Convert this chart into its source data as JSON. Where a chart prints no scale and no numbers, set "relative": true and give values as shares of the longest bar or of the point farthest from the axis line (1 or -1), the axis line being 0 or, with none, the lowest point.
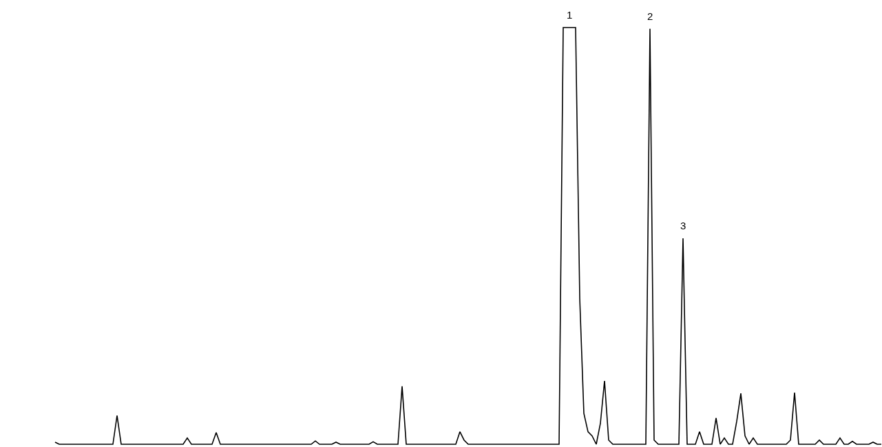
{
  "chart_data": {
    "type": "line",
    "relative": true,
    "color": "#000000",
    "marker": "none",
    "legend": false,
    "tick_labels": false,
    "categories": [
      null,
      null,
      null,
      null,
      null,
      null,
      null,
      null,
      null,
      null,
      null,
      null,
      null,
      null,
      null,
      null,
      null,
      null,
      null,
      null,
      null,
      null,
      null,
      null,
      null,
      null,
      null,
      null,
      null,
      null,
      null,
      null,
      null,
      null,
      null,
      null,
      null,
      null,
      null,
      null,
      null,
      null,
      null,
      null,
      null,
      null,
      null,
      null,
      null,
      null,
      null,
      null,
      null,
      null,
      null,
      null,
      null,
      null,
      null,
      null,
      null,
      null,
      null,
      null,
      null,
      null,
      null,
      null,
      null,
      null,
      null,
      null,
      null,
      null,
      null,
      null,
      null,
      null,
      null,
      null,
      null,
      null,
      null,
      null,
      null,
      null,
      null,
      null,
      null,
      null,
      null,
      null,
      null,
      null,
      null,
      null,
      null,
      null,
      null,
      null,
      null,
      null,
      null,
      null,
      null,
      null,
      null,
      null,
      null,
      null,
      null,
      null,
      null,
      null,
      null,
      null,
      null,
      null,
      null,
      null,
      null,
      null,
      null,
      null,
      null,
      null,
      null,
      null,
      null,
      null,
      null,
      null,
      null,
      null,
      null,
      null,
      null,
      null,
      null,
      null,
      null,
      null,
      null,
      null,
      null,
      null,
      null,
      null,
      null,
      null,
      null,
      null,
      null,
      null,
      null,
      null,
      null,
      null,
      null,
      null,
      null,
      null,
      null,
      null,
      null,
      null,
      null,
      null,
      null,
      null,
      null,
      null,
      null,
      null,
      null,
      null,
      null,
      null,
      null,
      null,
      null,
      null,
      null,
      null,
      null,
      null,
      null,
      null,
      null,
      null,
      null,
      null,
      null,
      null,
      null,
      null,
      null,
      null,
      null,
      null,
      null
    ],
    "values": [
      0.005,
      0,
      0,
      0,
      0,
      0,
      0,
      0,
      0,
      0,
      0,
      0,
      0,
      0,
      0,
      0.069,
      0,
      0,
      0,
      0,
      0,
      0,
      0,
      0,
      0,
      0,
      0,
      0,
      0,
      0,
      0,
      0,
      0.015,
      0,
      0,
      0,
      0,
      0,
      0,
      0.028,
      0,
      0,
      0,
      0,
      0,
      0,
      0,
      0,
      0,
      0,
      0,
      0,
      0,
      0,
      0,
      0,
      0,
      0,
      0,
      0,
      0,
      0,
      0,
      0.008,
      0,
      0,
      0,
      0,
      0.005,
      0,
      0,
      0,
      0,
      0,
      0,
      0,
      0,
      0.006,
      0,
      0,
      0,
      0,
      0,
      0,
      0.139,
      0,
      0,
      0,
      0,
      0,
      0,
      0,
      0,
      0,
      0,
      0,
      0,
      0,
      0.03,
      0.01,
      0,
      0,
      0,
      0,
      0,
      0,
      0,
      0,
      0,
      0,
      0,
      0,
      0,
      0,
      0,
      0,
      0,
      0,
      0,
      0,
      0,
      0,
      0,
      1,
      1,
      1,
      1,
      0.35,
      0.074,
      0.03,
      0.02,
      0,
      0.05,
      0.152,
      0.01,
      0,
      0,
      0,
      0,
      0,
      0,
      0,
      0,
      0,
      0.997,
      0.01,
      0,
      0,
      0,
      0,
      0,
      0,
      0.494,
      0,
      0,
      0,
      0.03,
      0,
      0,
      0,
      0.063,
      0,
      0.015,
      0,
      0,
      0.055,
      0.122,
      0.02,
      0,
      0.015,
      0,
      0,
      0,
      0,
      0,
      0,
      0,
      0,
      0.01,
      0.124,
      0,
      0,
      0,
      0,
      0,
      0.01,
      0,
      0,
      0,
      0,
      0.015,
      0,
      0,
      0.007,
      0,
      0,
      0,
      0,
      0.005,
      0,
      0
    ],
    "annotations": [
      {
        "text": "1",
        "y": 1
      },
      {
        "text": "2",
        "y": 0.997
      },
      {
        "text": "3",
        "y": 0.494
      }
    ]
  }
}
